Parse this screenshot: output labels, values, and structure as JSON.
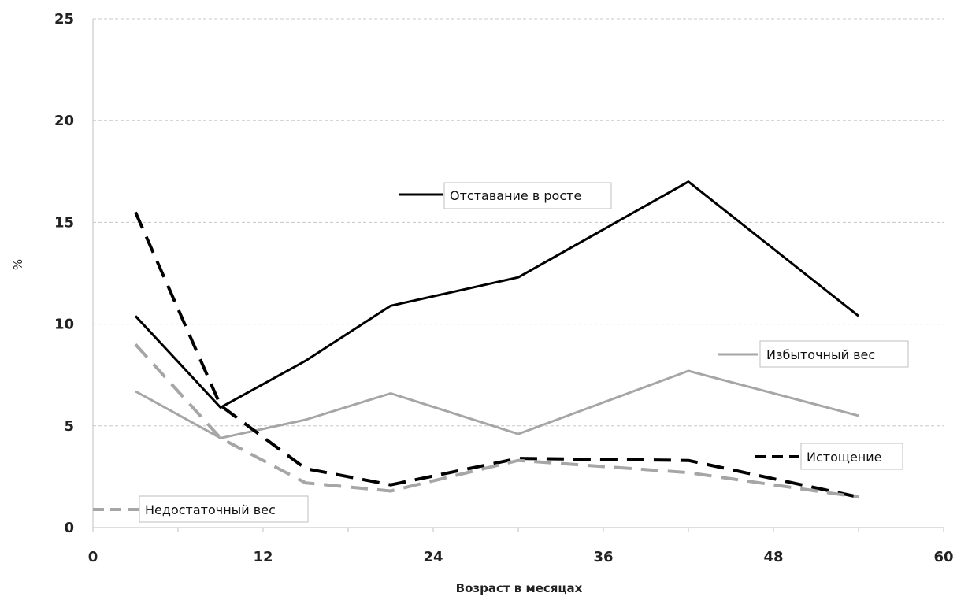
{
  "chart_data": {
    "type": "line",
    "title": "",
    "xlabel": "Возраст в месяцах",
    "ylabel": "%",
    "xlim": [
      0,
      60
    ],
    "ylim": [
      0,
      25
    ],
    "xticks": [
      0,
      12,
      24,
      36,
      48,
      60
    ],
    "yticks": [
      0,
      5,
      10,
      15,
      20,
      25
    ],
    "xtick_labels": [
      "0",
      "12",
      "24",
      "36",
      "48",
      "60"
    ],
    "ytick_labels": [
      "0",
      "5",
      "10",
      "15",
      "20",
      "25"
    ],
    "grid": "horizontal dashed",
    "x": [
      3,
      9,
      15,
      21,
      30,
      42,
      54
    ],
    "series": [
      {
        "name": "Отставание в росте",
        "values": [
          10.4,
          5.9,
          8.2,
          10.9,
          12.3,
          17.0,
          10.4
        ],
        "color": "#000000",
        "style": "solid",
        "width": 3
      },
      {
        "name": "Избыточный вес",
        "values": [
          6.7,
          4.4,
          5.3,
          6.6,
          4.6,
          7.7,
          5.5
        ],
        "color": "#a6a6a6",
        "style": "solid",
        "width": 3
      },
      {
        "name": "Истощение",
        "values": [
          15.5,
          6.0,
          2.9,
          2.1,
          3.4,
          3.3,
          1.5
        ],
        "color": "#000000",
        "style": "dashed",
        "width": 4
      },
      {
        "name": "Недостаточный вес",
        "values": [
          9.0,
          4.4,
          2.2,
          1.8,
          3.3,
          2.7,
          1.5
        ],
        "color": "#a6a6a6",
        "style": "dashed",
        "width": 4
      }
    ],
    "labels": [
      {
        "text": "Отставание в росте",
        "series": 0
      },
      {
        "text": "Избыточный вес",
        "series": 1
      },
      {
        "text": "Истощение",
        "series": 2
      },
      {
        "text": "Недостаточный вес",
        "series": 3
      }
    ]
  }
}
